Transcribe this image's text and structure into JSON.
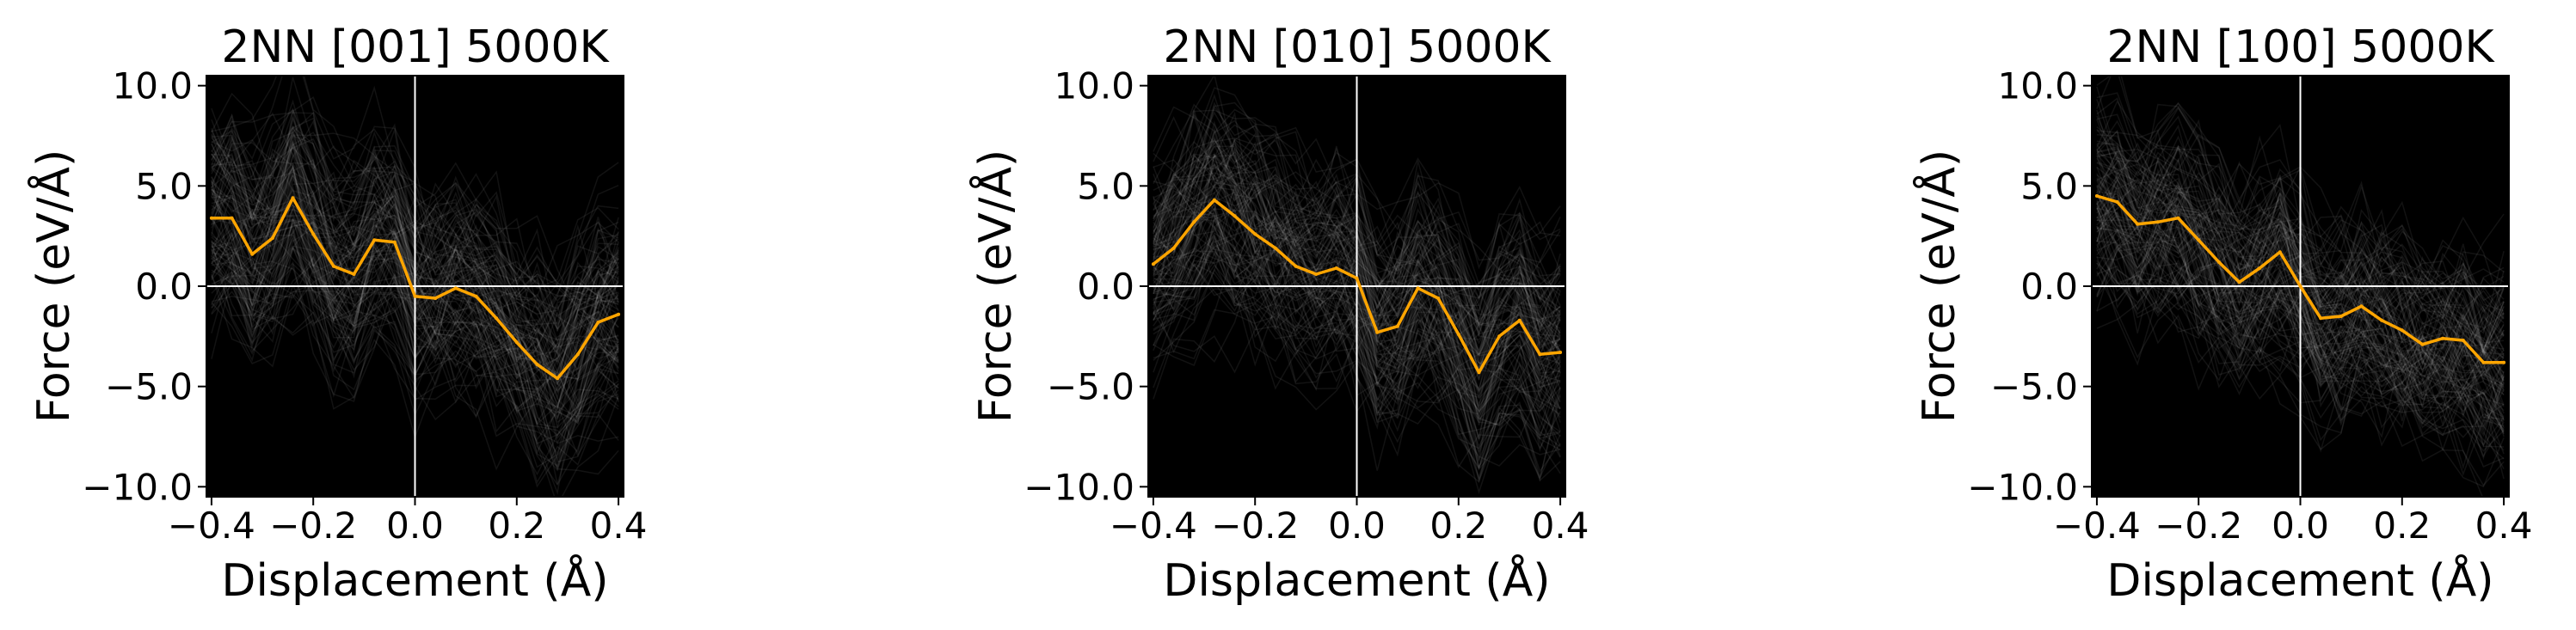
{
  "figure": {
    "background": "#ffffff",
    "plot_background": "#000000",
    "trace_color": "#ffffff",
    "mean_color": "#ffa500",
    "zero_line_color": "#ffffff"
  },
  "chart_data": [
    {
      "type": "line",
      "title": "2NN [001] 5000K",
      "xlabel": "Displacement (Å)",
      "ylabel": "Force (eV/Å)",
      "xlim": [
        -0.41,
        0.41
      ],
      "ylim": [
        -10.5,
        10.5
      ],
      "xticks": [
        -0.4,
        -0.2,
        0.0,
        0.2,
        0.4
      ],
      "xtick_labels": [
        "−0.4",
        "−0.2",
        "0.0",
        "0.2",
        "0.4"
      ],
      "yticks": [
        10,
        5,
        0,
        -5,
        -10
      ],
      "ytick_labels": [
        "10.0",
        "5.0",
        "0.0",
        "−5.0",
        "−10.0"
      ],
      "grid": false,
      "zero_lines": true,
      "series": [
        {
          "x": [
            -0.4,
            -0.36,
            -0.32,
            -0.28,
            -0.24,
            -0.2,
            -0.16,
            -0.12,
            -0.08,
            -0.04,
            0.0,
            0.04,
            0.08,
            0.12,
            0.16,
            0.2,
            0.24,
            0.28,
            0.32,
            0.36,
            0.4
          ],
          "y": [
            3.4,
            3.4,
            1.6,
            2.4,
            4.4,
            2.6,
            1.0,
            0.6,
            2.3,
            2.2,
            -0.5,
            -0.6,
            -0.1,
            -0.5,
            -1.6,
            -2.8,
            -3.9,
            -4.6,
            -3.4,
            -1.8,
            -1.4
          ]
        }
      ]
    },
    {
      "type": "line",
      "title": "2NN [010] 5000K",
      "xlabel": "Displacement (Å)",
      "ylabel": "Force (eV/Å)",
      "xlim": [
        -0.41,
        0.41
      ],
      "ylim": [
        -10.5,
        10.5
      ],
      "xticks": [
        -0.4,
        -0.2,
        0.0,
        0.2,
        0.4
      ],
      "xtick_labels": [
        "−0.4",
        "−0.2",
        "0.0",
        "0.2",
        "0.4"
      ],
      "yticks": [
        10,
        5,
        0,
        -5,
        -10
      ],
      "ytick_labels": [
        "10.0",
        "5.0",
        "0.0",
        "−5.0",
        "−10.0"
      ],
      "grid": false,
      "zero_lines": true,
      "series": [
        {
          "x": [
            -0.4,
            -0.36,
            -0.32,
            -0.28,
            -0.24,
            -0.2,
            -0.16,
            -0.12,
            -0.08,
            -0.04,
            0.0,
            0.04,
            0.08,
            0.12,
            0.16,
            0.2,
            0.24,
            0.28,
            0.32,
            0.36,
            0.4
          ],
          "y": [
            1.1,
            1.9,
            3.2,
            4.3,
            3.5,
            2.6,
            1.9,
            1.0,
            0.6,
            0.9,
            0.4,
            -2.3,
            -2.0,
            -0.1,
            -0.6,
            -2.4,
            -4.3,
            -2.5,
            -1.7,
            -3.4,
            -3.3
          ]
        }
      ]
    },
    {
      "type": "line",
      "title": "2NN [100] 5000K",
      "xlabel": "Displacement (Å)",
      "ylabel": "Force (eV/Å)",
      "xlim": [
        -0.41,
        0.41
      ],
      "ylim": [
        -10.5,
        10.5
      ],
      "xticks": [
        -0.4,
        -0.2,
        0.0,
        0.2,
        0.4
      ],
      "xtick_labels": [
        "−0.4",
        "−0.2",
        "0.0",
        "0.2",
        "0.4"
      ],
      "yticks": [
        10,
        5,
        0,
        -5,
        -10
      ],
      "ytick_labels": [
        "10.0",
        "5.0",
        "0.0",
        "−5.0",
        "−10.0"
      ],
      "grid": false,
      "zero_lines": true,
      "series": [
        {
          "x": [
            -0.4,
            -0.36,
            -0.32,
            -0.28,
            -0.24,
            -0.2,
            -0.16,
            -0.12,
            -0.08,
            -0.04,
            0.0,
            0.04,
            0.08,
            0.12,
            0.16,
            0.2,
            0.24,
            0.28,
            0.32,
            0.36,
            0.4
          ],
          "y": [
            4.5,
            4.2,
            3.1,
            3.2,
            3.4,
            2.3,
            1.2,
            0.2,
            0.9,
            1.7,
            0.0,
            -1.6,
            -1.5,
            -1.0,
            -1.7,
            -2.2,
            -2.9,
            -2.6,
            -2.7,
            -3.8,
            -3.8
          ]
        }
      ]
    }
  ]
}
